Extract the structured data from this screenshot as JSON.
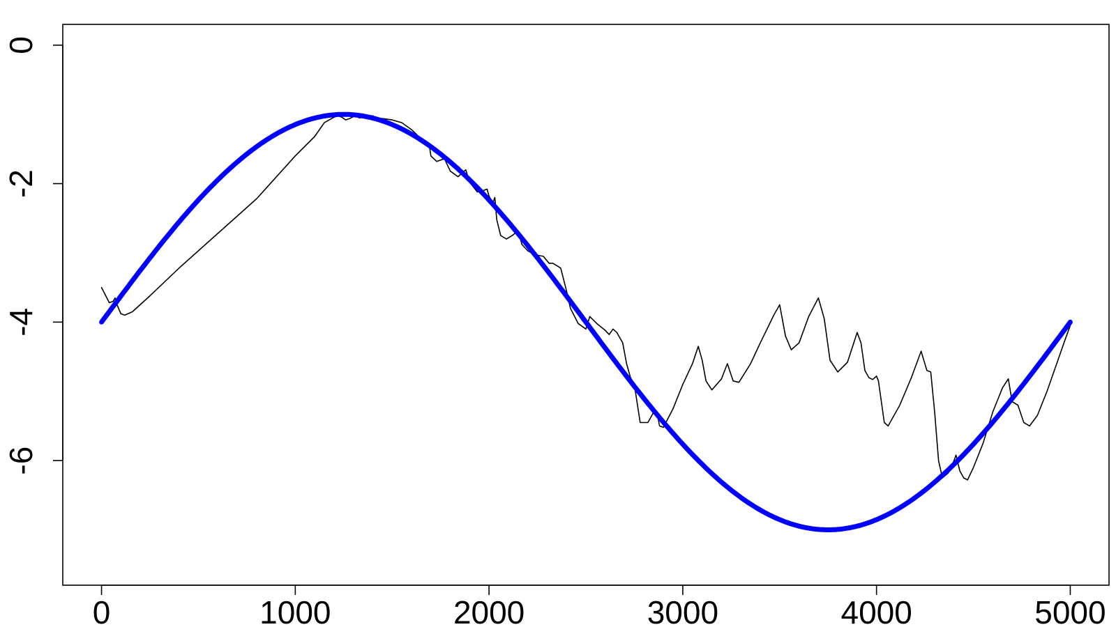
{
  "chart_data": {
    "type": "line",
    "xlabel": "",
    "ylabel": "",
    "xlim": [
      -200,
      5200
    ],
    "ylim": [
      -7.8,
      0.3
    ],
    "grid": false,
    "x_ticks": [
      0,
      1000,
      2000,
      3000,
      4000,
      5000
    ],
    "x_tick_labels": [
      "0",
      "1000",
      "2000",
      "3000",
      "4000",
      "5000"
    ],
    "y_ticks": [
      0,
      -2,
      -4,
      -6
    ],
    "y_tick_labels": [
      "0",
      "-2",
      "-4",
      "-6"
    ],
    "series": [
      {
        "color": "#000000",
        "style": "thin",
        "points": [
          [
            0,
            -3.5
          ],
          [
            40,
            -3.72
          ],
          [
            60,
            -3.7
          ],
          [
            70,
            -3.65
          ],
          [
            80,
            -3.75
          ],
          [
            100,
            -3.88
          ],
          [
            120,
            -3.9
          ],
          [
            160,
            -3.85
          ],
          [
            250,
            -3.62
          ],
          [
            400,
            -3.22
          ],
          [
            600,
            -2.72
          ],
          [
            800,
            -2.22
          ],
          [
            1000,
            -1.6
          ],
          [
            1100,
            -1.32
          ],
          [
            1150,
            -1.12
          ],
          [
            1200,
            -1.04
          ],
          [
            1220,
            -1.02
          ],
          [
            1240,
            -1.04
          ],
          [
            1260,
            -1.08
          ],
          [
            1280,
            -1.06
          ],
          [
            1310,
            -1.02
          ],
          [
            1330,
            -1.05
          ],
          [
            1360,
            -1.04
          ],
          [
            1400,
            -1.02
          ],
          [
            1420,
            -1.05
          ],
          [
            1450,
            -1.06
          ],
          [
            1500,
            -1.08
          ],
          [
            1550,
            -1.12
          ],
          [
            1600,
            -1.22
          ],
          [
            1660,
            -1.38
          ],
          [
            1690,
            -1.42
          ],
          [
            1700,
            -1.6
          ],
          [
            1730,
            -1.68
          ],
          [
            1770,
            -1.64
          ],
          [
            1780,
            -1.7
          ],
          [
            1800,
            -1.82
          ],
          [
            1840,
            -1.9
          ],
          [
            1880,
            -1.8
          ],
          [
            1900,
            -1.98
          ],
          [
            1940,
            -2.12
          ],
          [
            1970,
            -2.1
          ],
          [
            1990,
            -2.08
          ],
          [
            2000,
            -2.18
          ],
          [
            2020,
            -2.28
          ],
          [
            2030,
            -2.2
          ],
          [
            2040,
            -2.52
          ],
          [
            2060,
            -2.75
          ],
          [
            2090,
            -2.8
          ],
          [
            2120,
            -2.75
          ],
          [
            2150,
            -2.68
          ],
          [
            2170,
            -2.88
          ],
          [
            2200,
            -2.97
          ],
          [
            2240,
            -3.03
          ],
          [
            2280,
            -3.05
          ],
          [
            2310,
            -3.15
          ],
          [
            2330,
            -3.15
          ],
          [
            2370,
            -3.22
          ],
          [
            2400,
            -3.55
          ],
          [
            2420,
            -3.8
          ],
          [
            2460,
            -4.02
          ],
          [
            2500,
            -4.1
          ],
          [
            2520,
            -3.92
          ],
          [
            2560,
            -4.03
          ],
          [
            2600,
            -4.12
          ],
          [
            2620,
            -4.18
          ],
          [
            2640,
            -4.1
          ],
          [
            2660,
            -4.15
          ],
          [
            2690,
            -4.3
          ],
          [
            2710,
            -4.6
          ],
          [
            2730,
            -4.8
          ],
          [
            2750,
            -4.9
          ],
          [
            2780,
            -5.45
          ],
          [
            2820,
            -5.45
          ],
          [
            2850,
            -5.3
          ],
          [
            2870,
            -5.35
          ],
          [
            2880,
            -5.5
          ],
          [
            2900,
            -5.52
          ],
          [
            2950,
            -5.25
          ],
          [
            3000,
            -4.9
          ],
          [
            3050,
            -4.6
          ],
          [
            3080,
            -4.35
          ],
          [
            3100,
            -4.55
          ],
          [
            3120,
            -4.85
          ],
          [
            3150,
            -4.98
          ],
          [
            3200,
            -4.82
          ],
          [
            3230,
            -4.6
          ],
          [
            3260,
            -4.85
          ],
          [
            3290,
            -4.87
          ],
          [
            3350,
            -4.6
          ],
          [
            3400,
            -4.3
          ],
          [
            3470,
            -3.9
          ],
          [
            3500,
            -3.75
          ],
          [
            3530,
            -4.2
          ],
          [
            3560,
            -4.4
          ],
          [
            3600,
            -4.3
          ],
          [
            3650,
            -3.92
          ],
          [
            3700,
            -3.65
          ],
          [
            3730,
            -3.95
          ],
          [
            3760,
            -4.55
          ],
          [
            3800,
            -4.72
          ],
          [
            3850,
            -4.58
          ],
          [
            3900,
            -4.15
          ],
          [
            3920,
            -4.3
          ],
          [
            3940,
            -4.7
          ],
          [
            3960,
            -4.8
          ],
          [
            3980,
            -4.83
          ],
          [
            4000,
            -4.78
          ],
          [
            4010,
            -4.85
          ],
          [
            4020,
            -5.05
          ],
          [
            4040,
            -5.45
          ],
          [
            4060,
            -5.5
          ],
          [
            4120,
            -5.2
          ],
          [
            4180,
            -4.8
          ],
          [
            4230,
            -4.42
          ],
          [
            4260,
            -4.7
          ],
          [
            4280,
            -4.72
          ],
          [
            4300,
            -5.3
          ],
          [
            4320,
            -6.0
          ],
          [
            4340,
            -6.25
          ],
          [
            4370,
            -6.18
          ],
          [
            4400,
            -6.0
          ],
          [
            4410,
            -5.92
          ],
          [
            4430,
            -6.15
          ],
          [
            4450,
            -6.25
          ],
          [
            4470,
            -6.28
          ],
          [
            4500,
            -6.1
          ],
          [
            4550,
            -5.75
          ],
          [
            4600,
            -5.3
          ],
          [
            4650,
            -4.95
          ],
          [
            4680,
            -4.82
          ],
          [
            4700,
            -5.15
          ],
          [
            4730,
            -5.2
          ],
          [
            4760,
            -5.45
          ],
          [
            4790,
            -5.5
          ],
          [
            4830,
            -5.35
          ],
          [
            4880,
            -5.0
          ],
          [
            4930,
            -4.6
          ],
          [
            4970,
            -4.28
          ],
          [
            5000,
            -4.05
          ]
        ]
      },
      {
        "color": "#0000ff",
        "style": "thick",
        "formula": "y = -4 + 3*sin(2*pi*x/5000)",
        "x_range": [
          0,
          5000
        ]
      }
    ]
  }
}
